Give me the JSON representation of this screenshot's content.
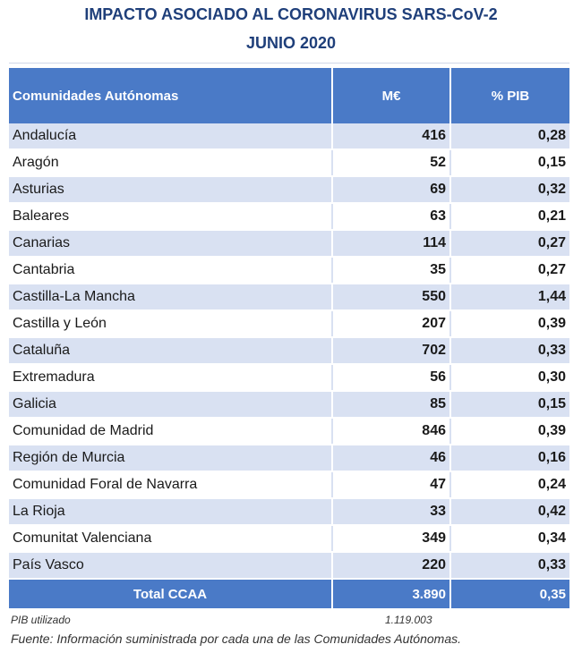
{
  "title_line1": "IMPACTO ASOCIADO AL CORONAVIRUS SARS-CoV-2",
  "title_line2": "JUNIO 2020",
  "table": {
    "headers": [
      "Comunidades Autónomas",
      "M€",
      "% PIB"
    ],
    "rows": [
      [
        "Andalucía",
        "416",
        "0,28"
      ],
      [
        "Aragón",
        "52",
        "0,15"
      ],
      [
        "Asturias",
        "69",
        "0,32"
      ],
      [
        "Baleares",
        "63",
        "0,21"
      ],
      [
        "Canarias",
        "114",
        "0,27"
      ],
      [
        "Cantabria",
        "35",
        "0,27"
      ],
      [
        "Castilla-La Mancha",
        "550",
        "1,44"
      ],
      [
        "Castilla y León",
        "207",
        "0,39"
      ],
      [
        "Cataluña",
        "702",
        "0,33"
      ],
      [
        "Extremadura",
        "56",
        "0,30"
      ],
      [
        "Galicia",
        "85",
        "0,15"
      ],
      [
        "Comunidad de Madrid",
        "846",
        "0,39"
      ],
      [
        "Región de Murcia",
        "46",
        "0,16"
      ],
      [
        "Comunidad Foral de Navarra",
        "47",
        "0,24"
      ],
      [
        "La Rioja",
        "33",
        "0,42"
      ],
      [
        "Comunitat Valenciana",
        "349",
        "0,34"
      ],
      [
        "País Vasco",
        "220",
        "0,33"
      ]
    ],
    "total": [
      "Total CCAA",
      "3.890",
      "0,35"
    ]
  },
  "notes": {
    "pib_label": "PIB utilizado",
    "pib_value": "1.119.003",
    "source": "Fuente: Información suministrada por cada una de las Comunidades Autónomas."
  }
}
